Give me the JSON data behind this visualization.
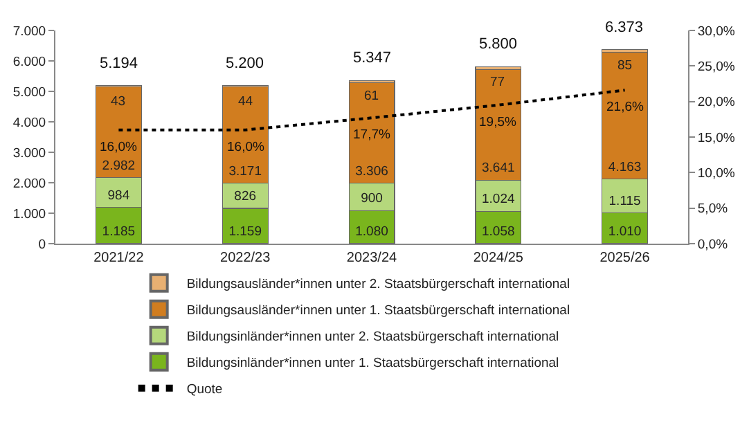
{
  "chart_data": {
    "type": "bar",
    "stacked": true,
    "categories": [
      "2021/22",
      "2022/23",
      "2023/24",
      "2024/25",
      "2025/26"
    ],
    "series": [
      {
        "name": "Bildungsinländer*innen unter 1. Staatsbürgerschaft international",
        "color": "#7ab51d",
        "values": [
          1185,
          1159,
          1080,
          1058,
          1010
        ],
        "value_labels": [
          "1.185",
          "1.159",
          "1.080",
          "1.058",
          "1.010"
        ]
      },
      {
        "name": "Bildungsinländer*innen unter 2. Staatsbürgerschaft international",
        "color": "#b5d87c",
        "values": [
          984,
          826,
          900,
          1024,
          1115
        ],
        "value_labels": [
          "984",
          "826",
          "900",
          "1.024",
          "1.115"
        ]
      },
      {
        "name": "Bildungsausländer*innen unter 1. Staatsbürgerschaft international",
        "color": "#d17d1f",
        "values": [
          2982,
          3171,
          3306,
          3641,
          4163
        ],
        "value_labels": [
          "2.982",
          "3.171",
          "3.306",
          "3.641",
          "4.163"
        ]
      },
      {
        "name": "Bildungsausländer*innen unter 2. Staatsbürgerschaft international",
        "color": "#e8b072",
        "values": [
          43,
          44,
          61,
          77,
          85
        ],
        "value_labels": [
          "43",
          "44",
          "61",
          "77",
          "85"
        ]
      },
      {
        "name": "Quote",
        "type": "line",
        "axis": "y2",
        "color": "#000000",
        "line_style": "dotted",
        "values": [
          16.0,
          16.0,
          17.7,
          19.5,
          21.6
        ],
        "value_labels": [
          "16,0%",
          "16,0%",
          "17,7%",
          "19,5%",
          "21,6%"
        ]
      }
    ],
    "totals": [
      "5.194",
      "5.200",
      "5.347",
      "5.800",
      "6.373"
    ],
    "ylim": [
      0,
      7000
    ],
    "yticks": [
      0,
      {
        "value": 1000,
        "label": "1.000"
      },
      {
        "value": 2000,
        "label": "2.000"
      },
      {
        "value": 3000,
        "label": "3.000"
      },
      {
        "value": 4000,
        "label": "4.000"
      },
      {
        "value": 5000,
        "label": "5.000"
      },
      {
        "value": 6000,
        "label": "6.000"
      },
      {
        "value": 7000,
        "label": "7.000"
      }
    ],
    "y2lim": [
      0,
      30
    ],
    "y2ticks": [
      {
        "value": 0,
        "label": "0,0%"
      },
      {
        "value": 5,
        "label": "5,0%"
      },
      {
        "value": 10,
        "label": "10,0%"
      },
      {
        "value": 15,
        "label": "15,0%"
      },
      {
        "value": 20,
        "label": "20,0%"
      },
      {
        "value": 25,
        "label": "25,0%"
      },
      {
        "value": 30,
        "label": "30,0%"
      }
    ],
    "grid": false,
    "legend": "bottom"
  }
}
